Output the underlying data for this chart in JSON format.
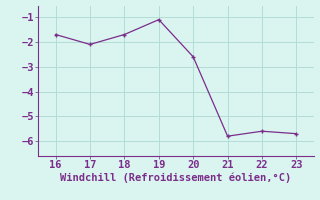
{
  "x": [
    16,
    17,
    18,
    19,
    20,
    21,
    22,
    23
  ],
  "y": [
    -1.7,
    -2.1,
    -1.7,
    -1.1,
    -2.6,
    -5.8,
    -5.6,
    -5.7
  ],
  "line_color": "#7B2D8B",
  "marker_color": "#7B2D8B",
  "bg_color": "#daf5ef",
  "grid_color": "#b2ddd6",
  "axis_color": "#7B2D8B",
  "tick_color": "#7B2D8B",
  "xlabel": "Windchill (Refroidissement éolien,°C)",
  "xlabel_fontsize": 7.5,
  "xlim": [
    15.5,
    23.5
  ],
  "ylim": [
    -6.6,
    -0.55
  ],
  "xticks": [
    16,
    17,
    18,
    19,
    20,
    21,
    22,
    23
  ],
  "yticks": [
    -1,
    -2,
    -3,
    -4,
    -5,
    -6
  ],
  "tick_fontsize": 7.5
}
